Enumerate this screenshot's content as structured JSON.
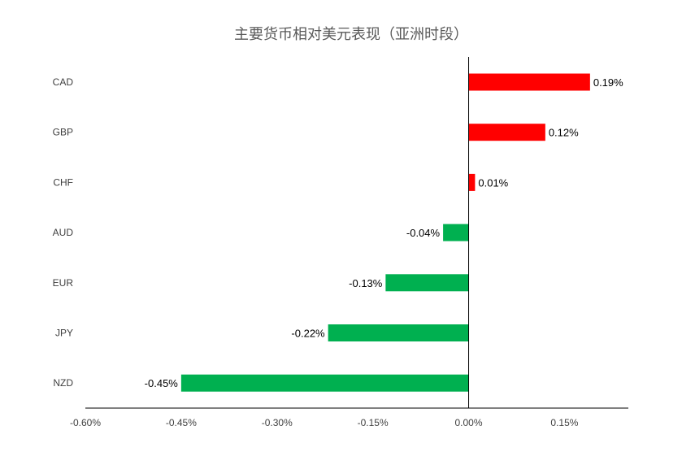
{
  "chart_data": {
    "type": "bar",
    "orientation": "horizontal",
    "title": "主要货币相对美元表现（亚洲时段）",
    "categories": [
      "CAD",
      "GBP",
      "CHF",
      "AUD",
      "EUR",
      "JPY",
      "NZD"
    ],
    "values": [
      0.19,
      0.12,
      0.01,
      -0.04,
      -0.13,
      -0.22,
      -0.45
    ],
    "value_labels": [
      "0.19%",
      "0.12%",
      "0.01%",
      "-0.04%",
      "-0.13%",
      "-0.22%",
      "-0.45%"
    ],
    "xlim": [
      -0.6,
      0.25
    ],
    "xticks": [
      -0.6,
      -0.45,
      -0.3,
      -0.15,
      0.0,
      0.15
    ],
    "xtick_labels": [
      "-0.60%",
      "-0.45%",
      "-0.30%",
      "-0.15%",
      "0.00%",
      "0.15%"
    ],
    "grid": false,
    "legend": "none",
    "colors": {
      "positive": "#ff0000",
      "negative": "#00b050",
      "axis": "#000000"
    }
  }
}
